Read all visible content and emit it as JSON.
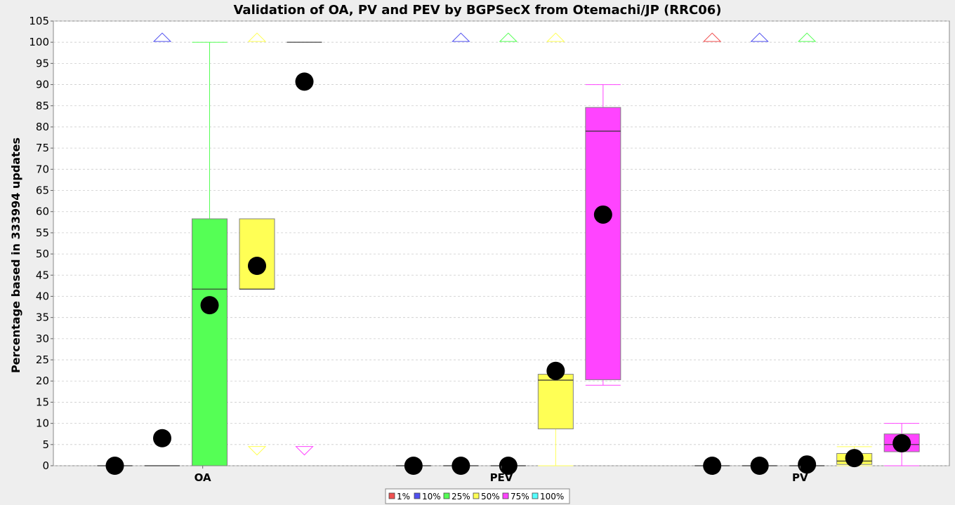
{
  "chart_data": {
    "type": "box",
    "title": "Validation of OA, PV and PEV by BGPSecX from Otemachi/JP (RRC06)",
    "ylabel": "Percentage based in 333994 updates",
    "xlabel": "",
    "ylim": [
      0,
      105
    ],
    "yticks": [
      0,
      5,
      10,
      15,
      20,
      25,
      30,
      35,
      40,
      45,
      50,
      55,
      60,
      65,
      70,
      75,
      80,
      85,
      90,
      95,
      100,
      105
    ],
    "grid": true,
    "legend_position": "bottom",
    "categories": [
      "OA",
      "PEV",
      "PV"
    ],
    "series": [
      {
        "name": "1%",
        "color": "#f05050",
        "boxes": [
          {
            "q1": 0,
            "median": 0,
            "q3": 0,
            "whisker_low": 0,
            "whisker_high": 0,
            "mean": 0,
            "outlier_above": false,
            "outlier_below": false
          },
          {
            "q1": 0,
            "median": 0,
            "q3": 0,
            "whisker_low": 0,
            "whisker_high": 0,
            "mean": 0,
            "outlier_above": false,
            "outlier_below": false
          },
          {
            "q1": 0,
            "median": 0,
            "q3": 0,
            "whisker_low": 0,
            "whisker_high": 0,
            "mean": 0,
            "outlier_above": true,
            "outlier_below": false
          }
        ]
      },
      {
        "name": "10%",
        "color": "#5050f0",
        "boxes": [
          {
            "q1": 0,
            "median": 0,
            "q3": 0,
            "whisker_low": 0,
            "whisker_high": 0,
            "mean": 6.5,
            "outlier_above": true,
            "outlier_below": false
          },
          {
            "q1": 0,
            "median": 0,
            "q3": 0,
            "whisker_low": 0,
            "whisker_high": 0,
            "mean": 0,
            "outlier_above": true,
            "outlier_below": false
          },
          {
            "q1": 0,
            "median": 0,
            "q3": 0,
            "whisker_low": 0,
            "whisker_high": 0,
            "mean": 0,
            "outlier_above": true,
            "outlier_below": false
          }
        ]
      },
      {
        "name": "25%",
        "color": "#55ff55",
        "boxes": [
          {
            "q1": 0,
            "median": 41.7,
            "q3": 58.3,
            "whisker_low": 0,
            "whisker_high": 100,
            "mean": 37.9,
            "outlier_above": false,
            "outlier_below": false
          },
          {
            "q1": 0,
            "median": 0,
            "q3": 0,
            "whisker_low": 0,
            "whisker_high": 0,
            "mean": 0,
            "outlier_above": true,
            "outlier_below": false
          },
          {
            "q1": 0,
            "median": 0,
            "q3": 0,
            "whisker_low": 0,
            "whisker_high": 0,
            "mean": 0.3,
            "outlier_above": true,
            "outlier_below": false
          }
        ]
      },
      {
        "name": "50%",
        "color": "#ffff55",
        "boxes": [
          {
            "q1": 41.7,
            "median": 41.7,
            "q3": 58.3,
            "whisker_low": 41.7,
            "whisker_high": 58.3,
            "mean": 47.2,
            "outlier_above": true,
            "outlier_below": true
          },
          {
            "q1": 8.7,
            "median": 20.2,
            "q3": 21.6,
            "whisker_low": 0,
            "whisker_high": 21.6,
            "mean": 22.4,
            "outlier_above": true,
            "outlier_below": false
          },
          {
            "q1": 0.3,
            "median": 1.1,
            "q3": 2.9,
            "whisker_low": 0,
            "whisker_high": 4.5,
            "mean": 1.8,
            "outlier_above": false,
            "outlier_below": false
          }
        ]
      },
      {
        "name": "75%",
        "color": "#ff44ff",
        "boxes": [
          {
            "q1": 100,
            "median": 100,
            "q3": 100,
            "whisker_low": 100,
            "whisker_high": 100,
            "mean": 90.7,
            "outlier_above": false,
            "outlier_below": true
          },
          {
            "q1": 20.3,
            "median": 79.0,
            "q3": 84.6,
            "whisker_low": 19.0,
            "whisker_high": 90.0,
            "mean": 59.3,
            "outlier_above": false,
            "outlier_below": false
          },
          {
            "q1": 3.3,
            "median": 5.0,
            "q3": 7.5,
            "whisker_low": 0,
            "whisker_high": 10,
            "mean": 5.3,
            "outlier_above": false,
            "outlier_below": false
          }
        ]
      },
      {
        "name": "100%",
        "color": "#55ffff",
        "boxes": []
      }
    ]
  }
}
